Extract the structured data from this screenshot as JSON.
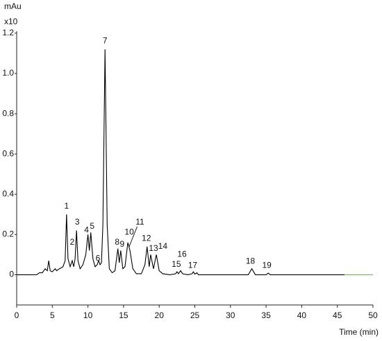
{
  "chart_data": {
    "type": "line",
    "y_unit": "mAu",
    "y_multiplier": "x10",
    "x_label": "Time (min)",
    "xlim": [
      0,
      50
    ],
    "xticks": [
      0,
      5,
      10,
      15,
      20,
      25,
      30,
      35,
      40,
      45,
      50
    ],
    "ylim": [
      -0.15,
      1.21
    ],
    "yticks": [
      0,
      0.2,
      0.4,
      0.6,
      0.8,
      {
        "value": 1,
        "label": "1.0"
      },
      1.2
    ],
    "grid": false,
    "series": [
      {
        "color": "#000000",
        "x": [
          0,
          2.8,
          3.2,
          3.6,
          4.0,
          4.3,
          4.5,
          4.7,
          5.0,
          5.4,
          5.6,
          6.0,
          6.5,
          6.8,
          7.0,
          7.2,
          7.5,
          7.8,
          8.0,
          8.2,
          8.4,
          8.6,
          8.9,
          9.3,
          9.7,
          10.0,
          10.2,
          10.4,
          10.7,
          11.0,
          11.3,
          11.5,
          11.7,
          11.9,
          12.1,
          12.4,
          12.7,
          13.0,
          13.4,
          13.8,
          14.2,
          14.4,
          14.6,
          14.9,
          15.2,
          15.6,
          15.9,
          16.3,
          16.8,
          17.5,
          18.0,
          18.3,
          18.6,
          18.8,
          19.2,
          19.6,
          20.0,
          20.5,
          21.5,
          22.3,
          22.5,
          22.7,
          23.0,
          23.3,
          24.0,
          24.6,
          24.8,
          25.0,
          25.3,
          25.5,
          26,
          32.5,
          33.0,
          33.5,
          35.0,
          35.3,
          35.6,
          46
        ],
        "values": [
          0,
          0,
          0.01,
          0.01,
          0.03,
          0.02,
          0.07,
          0.02,
          0.015,
          0.03,
          0.02,
          0.03,
          0.04,
          0.07,
          0.3,
          0.08,
          0.04,
          0.07,
          0.04,
          0.08,
          0.22,
          0.07,
          0.03,
          0.05,
          0.1,
          0.2,
          0.12,
          0.21,
          0.08,
          0.04,
          0.05,
          0.07,
          0.05,
          0.06,
          0.25,
          1.12,
          0.25,
          0.03,
          0.01,
          0.02,
          0.13,
          0.06,
          0.12,
          0.03,
          0.04,
          0.16,
          0.12,
          0.03,
          0.005,
          0.005,
          0.05,
          0.14,
          0.04,
          0.1,
          0.03,
          0.1,
          0.02,
          0.005,
          0,
          0.005,
          0.015,
          0.005,
          0.02,
          0.005,
          0,
          0.005,
          0.015,
          0.003,
          0.01,
          0,
          0,
          0,
          0.03,
          0,
          0,
          0.008,
          0,
          0
        ]
      },
      {
        "color": "#66bb55",
        "x": [
          46,
          50
        ],
        "values": [
          0,
          0
        ]
      }
    ],
    "annotations": [
      {
        "text": "1",
        "x": 7.0,
        "y": 0.34
      },
      {
        "text": "2",
        "x": 7.8,
        "y": 0.16
      },
      {
        "text": "3",
        "x": 8.5,
        "y": 0.26
      },
      {
        "text": "4",
        "x": 9.8,
        "y": 0.22
      },
      {
        "text": "5",
        "x": 10.6,
        "y": 0.24
      },
      {
        "text": "6",
        "x": 11.4,
        "y": 0.08
      },
      {
        "text": "7",
        "x": 12.4,
        "y": 1.16
      },
      {
        "text": "8",
        "x": 14.1,
        "y": 0.16
      },
      {
        "text": "9",
        "x": 14.8,
        "y": 0.15
      },
      {
        "text": "10",
        "x": 15.8,
        "y": 0.21
      },
      {
        "text": "11",
        "x": 17.3,
        "y": 0.26
      },
      {
        "text": "12",
        "x": 18.2,
        "y": 0.18
      },
      {
        "text": "13",
        "x": 19.2,
        "y": 0.13
      },
      {
        "text": "14",
        "x": 20.5,
        "y": 0.14
      },
      {
        "text": "15",
        "x": 22.4,
        "y": 0.05
      },
      {
        "text": "16",
        "x": 23.2,
        "y": 0.1
      },
      {
        "text": "17",
        "x": 24.7,
        "y": 0.045
      },
      {
        "text": "18",
        "x": 32.8,
        "y": 0.065
      },
      {
        "text": "19",
        "x": 35.1,
        "y": 0.045
      }
    ]
  }
}
